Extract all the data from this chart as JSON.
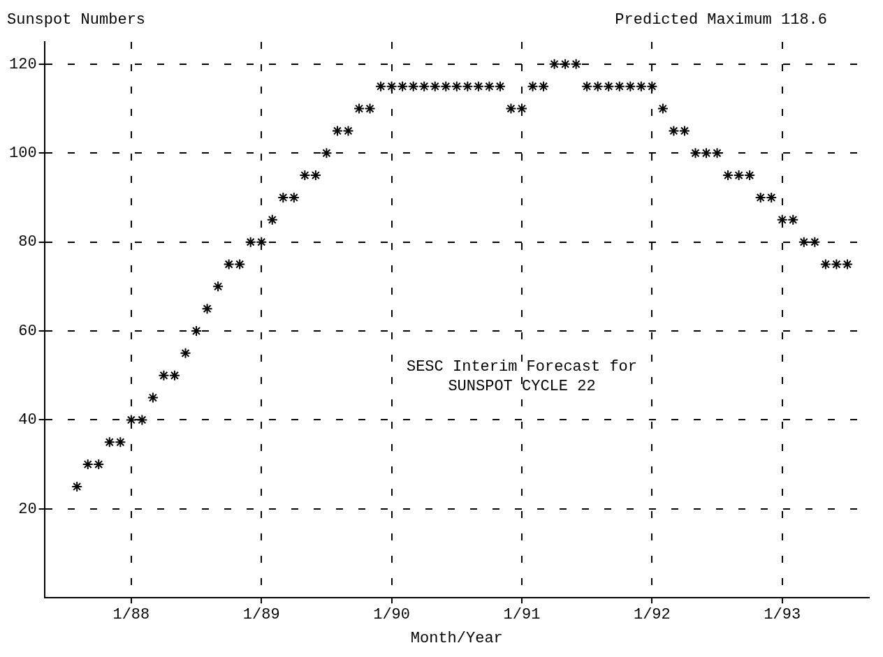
{
  "chart_data": {
    "type": "scatter",
    "xlabel": "Month/Year",
    "ylabel": "Sunspot Numbers",
    "annotations": [
      "Predicted Maximum 118.6",
      "SESC Interim Forecast for\nSUNSPOT CYCLE 22"
    ],
    "x": [
      "1987-08",
      "1987-09",
      "1987-10",
      "1987-11",
      "1987-12",
      "1988-01",
      "1988-02",
      "1988-03",
      "1988-04",
      "1988-05",
      "1988-06",
      "1988-07",
      "1988-08",
      "1988-09",
      "1988-10",
      "1988-11",
      "1988-12",
      "1989-01",
      "1989-02",
      "1989-03",
      "1989-04",
      "1989-05",
      "1989-06",
      "1989-07",
      "1989-08",
      "1989-09",
      "1989-10",
      "1989-11",
      "1989-12",
      "1990-01",
      "1990-02",
      "1990-03",
      "1990-04",
      "1990-05",
      "1990-06",
      "1990-07",
      "1990-08",
      "1990-09",
      "1990-10",
      "1990-11",
      "1990-12",
      "1991-01",
      "1991-02",
      "1991-03",
      "1991-04",
      "1991-05",
      "1991-06",
      "1991-07",
      "1991-08",
      "1991-09",
      "1991-10",
      "1991-11",
      "1991-12",
      "1992-01",
      "1992-02",
      "1992-03",
      "1992-04",
      "1992-05",
      "1992-06",
      "1992-07",
      "1992-08",
      "1992-09",
      "1992-10",
      "1992-11",
      "1992-12",
      "1993-01",
      "1993-02",
      "1993-03",
      "1993-04",
      "1993-05",
      "1993-06",
      "1993-07"
    ],
    "values": [
      25,
      30,
      30,
      35,
      35,
      40,
      40,
      45,
      50,
      50,
      55,
      60,
      65,
      70,
      75,
      75,
      80,
      80,
      85,
      90,
      90,
      95,
      95,
      100,
      105,
      105,
      110,
      110,
      115,
      115,
      115,
      115,
      115,
      115,
      115,
      115,
      115,
      115,
      115,
      115,
      110,
      110,
      115,
      115,
      120,
      120,
      120,
      115,
      115,
      115,
      115,
      115,
      115,
      115,
      110,
      105,
      105,
      100,
      100,
      100,
      95,
      95,
      95,
      90,
      90,
      85,
      85,
      80,
      80,
      75,
      75,
      75
    ],
    "color": "#000000",
    "marker": "cross",
    "xlim": [
      "1987-05",
      "1993-09"
    ],
    "ylim": [
      0,
      125
    ],
    "xticks": [
      {
        "value": "1988-01",
        "label": "1/88"
      },
      {
        "value": "1989-01",
        "label": "1/89"
      },
      {
        "value": "1990-01",
        "label": "1/90"
      },
      {
        "value": "1991-01",
        "label": "1/91"
      },
      {
        "value": "1992-01",
        "label": "1/92"
      },
      {
        "value": "1993-01",
        "label": "1/93"
      }
    ],
    "yticks": [
      20,
      40,
      60,
      80,
      100,
      120
    ],
    "grid": true
  }
}
